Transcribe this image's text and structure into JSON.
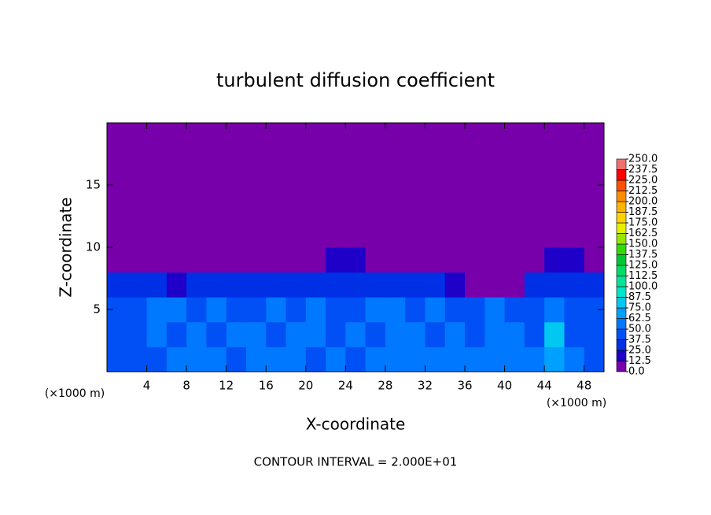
{
  "chart_data": {
    "type": "heatmap",
    "title": "turbulent diffusion coefficient",
    "x_label": "X-coordinate",
    "y_label": "Z-coordinate",
    "x_unit": "(×1000 m)",
    "x_unit_right": "(×1000 m)",
    "footer": "CONTOUR INTERVAL = 2.000E+01",
    "xlim": [
      0,
      50
    ],
    "ylim": [
      0,
      20
    ],
    "xticks": [
      4,
      8,
      12,
      16,
      20,
      24,
      28,
      32,
      36,
      40,
      44,
      48
    ],
    "yticks": [
      5,
      10,
      15
    ],
    "z": [
      [
        45,
        40,
        45,
        55,
        50,
        55,
        45,
        50,
        55,
        50,
        45,
        50,
        45,
        50,
        50,
        55,
        60,
        55,
        50,
        50,
        55,
        60,
        70,
        55,
        45
      ],
      [
        40,
        45,
        55,
        45,
        60,
        45,
        55,
        50,
        45,
        55,
        50,
        45,
        55,
        45,
        50,
        55,
        40,
        50,
        45,
        55,
        50,
        40,
        75,
        45,
        40
      ],
      [
        45,
        40,
        50,
        55,
        45,
        50,
        40,
        45,
        55,
        45,
        50,
        45,
        40,
        55,
        50,
        45,
        50,
        40,
        45,
        50,
        40,
        45,
        60,
        40,
        45
      ],
      [
        30,
        25,
        30,
        20,
        30,
        35,
        25,
        30,
        30,
        35,
        35,
        30,
        35,
        30,
        30,
        30,
        25,
        20,
        0,
        0,
        10,
        30,
        35,
        30,
        25
      ],
      [
        0,
        0,
        0,
        0,
        0,
        0,
        0,
        0,
        0,
        0,
        10,
        15,
        15,
        10,
        0,
        0,
        0,
        0,
        0,
        0,
        0,
        0,
        15,
        15,
        10
      ],
      [
        0,
        0,
        0,
        0,
        0,
        0,
        0,
        0,
        0,
        0,
        0,
        0,
        0,
        0,
        0,
        0,
        0,
        0,
        0,
        0,
        0,
        0,
        0,
        0,
        0
      ],
      [
        0,
        0,
        0,
        0,
        0,
        0,
        0,
        0,
        0,
        0,
        0,
        0,
        0,
        0,
        0,
        0,
        0,
        0,
        0,
        0,
        0,
        0,
        0,
        0,
        0
      ],
      [
        0,
        0,
        0,
        0,
        0,
        0,
        0,
        0,
        0,
        0,
        0,
        0,
        0,
        0,
        0,
        0,
        0,
        0,
        0,
        0,
        0,
        0,
        0,
        0,
        0
      ],
      [
        0,
        0,
        0,
        0,
        0,
        0,
        0,
        0,
        0,
        0,
        0,
        0,
        0,
        0,
        0,
        0,
        0,
        0,
        0,
        0,
        0,
        0,
        0,
        0,
        0
      ],
      [
        0,
        0,
        0,
        0,
        0,
        0,
        0,
        0,
        0,
        0,
        0,
        0,
        0,
        0,
        0,
        0,
        0,
        0,
        0,
        0,
        0,
        0,
        0,
        0,
        0
      ]
    ],
    "colorbar_ticks": [
      {
        "value": 0,
        "label": "0.0"
      },
      {
        "value": 12.5,
        "label": "12.5"
      },
      {
        "value": 25,
        "label": "25.0"
      },
      {
        "value": 37.5,
        "label": "37.5"
      },
      {
        "value": 50,
        "label": "50.0"
      },
      {
        "value": 62.5,
        "label": "62.5"
      },
      {
        "value": 75,
        "label": "75.0"
      },
      {
        "value": 87.5,
        "label": "87.5"
      },
      {
        "value": 100,
        "label": "100.0"
      },
      {
        "value": 112.5,
        "label": "112.5"
      },
      {
        "value": 125,
        "label": "125.0"
      },
      {
        "value": 137.5,
        "label": "137.5"
      },
      {
        "value": 150,
        "label": "150.0"
      },
      {
        "value": 162.5,
        "label": "162.5"
      },
      {
        "value": 175,
        "label": "175.0"
      },
      {
        "value": 187.5,
        "label": "187.5"
      },
      {
        "value": 200,
        "label": "200.0"
      },
      {
        "value": 212.5,
        "label": "212.5"
      },
      {
        "value": 225,
        "label": "225.0"
      },
      {
        "value": 237.5,
        "label": "237.5"
      },
      {
        "value": 250,
        "label": "250.0"
      }
    ],
    "colors": [
      "#7800aa",
      "#1e00c8",
      "#0030e6",
      "#0050f5",
      "#0078ff",
      "#00a0ff",
      "#00c8f0",
      "#00e6c8",
      "#00e696",
      "#00dc64",
      "#00c832",
      "#32dc00",
      "#96e600",
      "#e6f000",
      "#ffd200",
      "#ffb400",
      "#ff8c00",
      "#ff5000",
      "#ff0000",
      "#f07070"
    ]
  }
}
